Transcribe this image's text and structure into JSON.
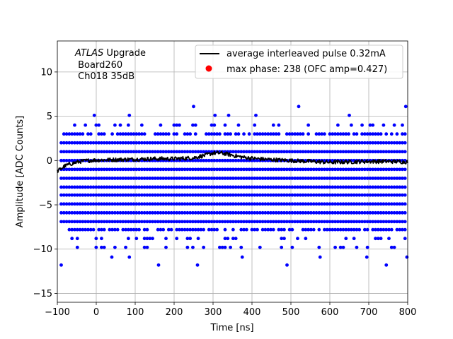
{
  "chart_data": {
    "type": "scatter",
    "xlabel": "Time [ns]",
    "ylabel": "Amplitude [ADC Counts]",
    "xlim": [
      -100,
      800
    ],
    "ylim": [
      -16,
      13.5
    ],
    "x_ticks": [
      -100,
      0,
      100,
      200,
      300,
      400,
      500,
      600,
      700,
      800
    ],
    "y_ticks": [
      -15,
      -10,
      -5,
      0,
      5,
      10
    ],
    "grid": true,
    "annotation": {
      "italic": "ATLAS",
      "text": " Upgrade",
      "line2": " Board260",
      "line3": " Ch018 35dB"
    },
    "legend": {
      "placement": "top-right",
      "entries": [
        {
          "label": "average interleaved pulse 0.32mA",
          "marker": "line",
          "color": "#000000"
        },
        {
          "label": "max phase: 238 (OFC amp=0.427)",
          "marker": "dot",
          "color": "#ff0000"
        }
      ]
    },
    "series": [
      {
        "kind": "scatter",
        "color": "#0000ff",
        "y_levels": [
          -9.8,
          -8.8,
          -7.8,
          -6.9,
          -5.9,
          -4.9,
          -3.9,
          -3.0,
          -2.0,
          -1.0,
          0.0,
          1.0,
          2.0,
          3.0,
          4.0
        ],
        "dense_levels": [
          -6.9,
          -5.9,
          -4.9,
          -3.9,
          -3.0,
          -2.0,
          -1.0,
          0.0,
          1.0,
          2.0
        ],
        "sparse_levels": [
          -9.8,
          -8.8,
          -7.8,
          3.0,
          4.0
        ],
        "x_range": [
          -90,
          800
        ],
        "dense_step": 6.9,
        "outliers": [
          {
            "x": -90,
            "y": -11.8
          },
          {
            "x": 40,
            "y": -10.9
          },
          {
            "x": 85,
            "y": -10.9
          },
          {
            "x": 160,
            "y": -11.8
          },
          {
            "x": 260,
            "y": -11.8
          },
          {
            "x": 375,
            "y": -10.9
          },
          {
            "x": 490,
            "y": -11.8
          },
          {
            "x": 575,
            "y": -10.9
          },
          {
            "x": 695,
            "y": -10.9
          },
          {
            "x": 745,
            "y": -11.8
          },
          {
            "x": 798,
            "y": -10.9
          },
          {
            "x": -5,
            "y": 5.1
          },
          {
            "x": 85,
            "y": 5.1
          },
          {
            "x": 250,
            "y": 6.1
          },
          {
            "x": 305,
            "y": 5.1
          },
          {
            "x": 340,
            "y": 5.1
          },
          {
            "x": 410,
            "y": 5.1
          },
          {
            "x": 520,
            "y": 6.1
          },
          {
            "x": 650,
            "y": 5.1
          },
          {
            "x": 795,
            "y": 6.1
          }
        ]
      },
      {
        "kind": "line",
        "name": "average interleaved pulse 0.32mA",
        "color": "#000000",
        "x": [
          -100,
          -90,
          -80,
          -60,
          -40,
          -20,
          0,
          50,
          100,
          150,
          200,
          250,
          280,
          300,
          320,
          340,
          360,
          380,
          400,
          450,
          500,
          550,
          600,
          650,
          700,
          750,
          800
        ],
        "y": [
          -1.2,
          -0.9,
          -0.6,
          -0.3,
          -0.1,
          0.0,
          0.05,
          0.1,
          0.15,
          0.2,
          0.2,
          0.3,
          0.6,
          0.85,
          0.85,
          0.7,
          0.5,
          0.35,
          0.25,
          0.1,
          0.0,
          -0.1,
          -0.2,
          -0.15,
          -0.1,
          -0.1,
          -0.15
        ]
      }
    ]
  }
}
